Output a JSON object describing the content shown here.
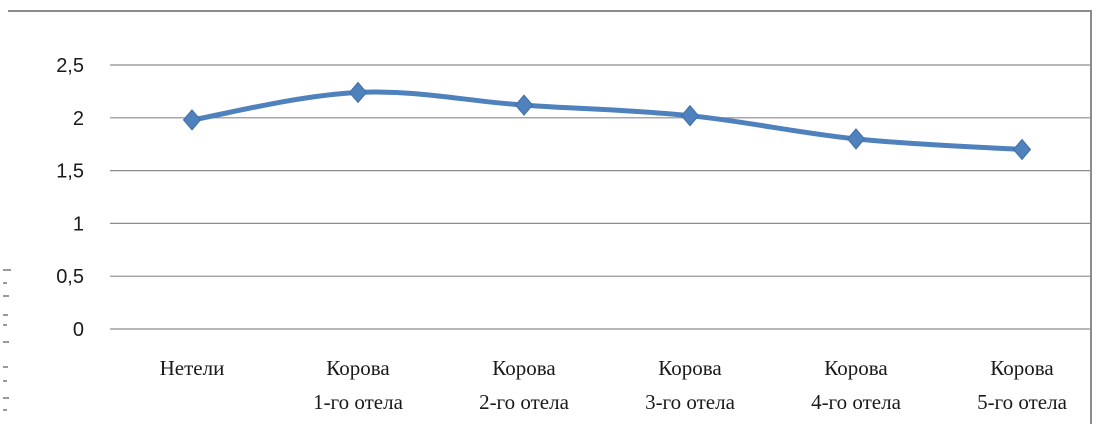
{
  "chart_data": {
    "type": "line",
    "categories": [
      [
        "Нетели"
      ],
      [
        "Корова",
        "1-го отела"
      ],
      [
        "Корова",
        "2-го отела"
      ],
      [
        "Корова",
        "3-го отела"
      ],
      [
        "Корова",
        "4-го отела"
      ],
      [
        "Корова",
        "5-го отела"
      ]
    ],
    "series": [
      {
        "values": [
          1.98,
          2.24,
          2.12,
          2.02,
          1.8,
          1.7
        ],
        "color": "#4f81bd",
        "marker": "diamond",
        "smooth": true
      }
    ],
    "y_ticks": [
      "0",
      "0,5",
      "1",
      "1,5",
      "2",
      "2,5"
    ],
    "ylim": [
      0,
      2.5
    ],
    "grid": true,
    "legend": "none",
    "title": "",
    "xlabel": "",
    "ylabel": ""
  }
}
